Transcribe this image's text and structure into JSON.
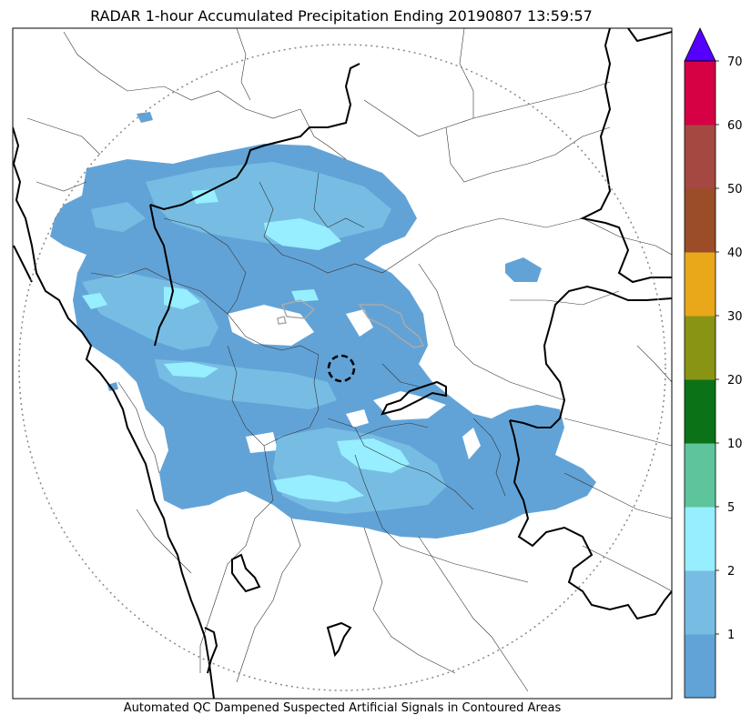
{
  "title": "RADAR 1-hour Accumulated Precipitation Ending 20190807 13:59:57",
  "footer": "Automated QC Dampened Suspected Artificial Signals in Contoured Areas",
  "colorbar": {
    "extend_max_color": "#5500ff",
    "bins": [
      {
        "from": 0,
        "to": 1,
        "color": "#62a3d7"
      },
      {
        "from": 1,
        "to": 2,
        "color": "#77bde3"
      },
      {
        "from": 2,
        "to": 5,
        "color": "#96eefe"
      },
      {
        "from": 5,
        "to": 10,
        "color": "#5ec49c"
      },
      {
        "from": 10,
        "to": 20,
        "color": "#0b7218"
      },
      {
        "from": 20,
        "to": 30,
        "color": "#8a9414"
      },
      {
        "from": 30,
        "to": 40,
        "color": "#e8a81a"
      },
      {
        "from": 40,
        "to": 50,
        "color": "#9b4d28"
      },
      {
        "from": 50,
        "to": 60,
        "color": "#a54841"
      },
      {
        "from": 60,
        "to": 70,
        "color": "#d60044"
      }
    ],
    "tick_labels": [
      "1",
      "2",
      "5",
      "10",
      "20",
      "30",
      "40",
      "50",
      "60",
      "70"
    ]
  },
  "map": {
    "range_ring": "dotted",
    "radar_site_marker": "dashed-circle",
    "state_border_color": "#000000",
    "district_border_color": "#333333",
    "qc_contour_color": "#aaaaaa"
  }
}
